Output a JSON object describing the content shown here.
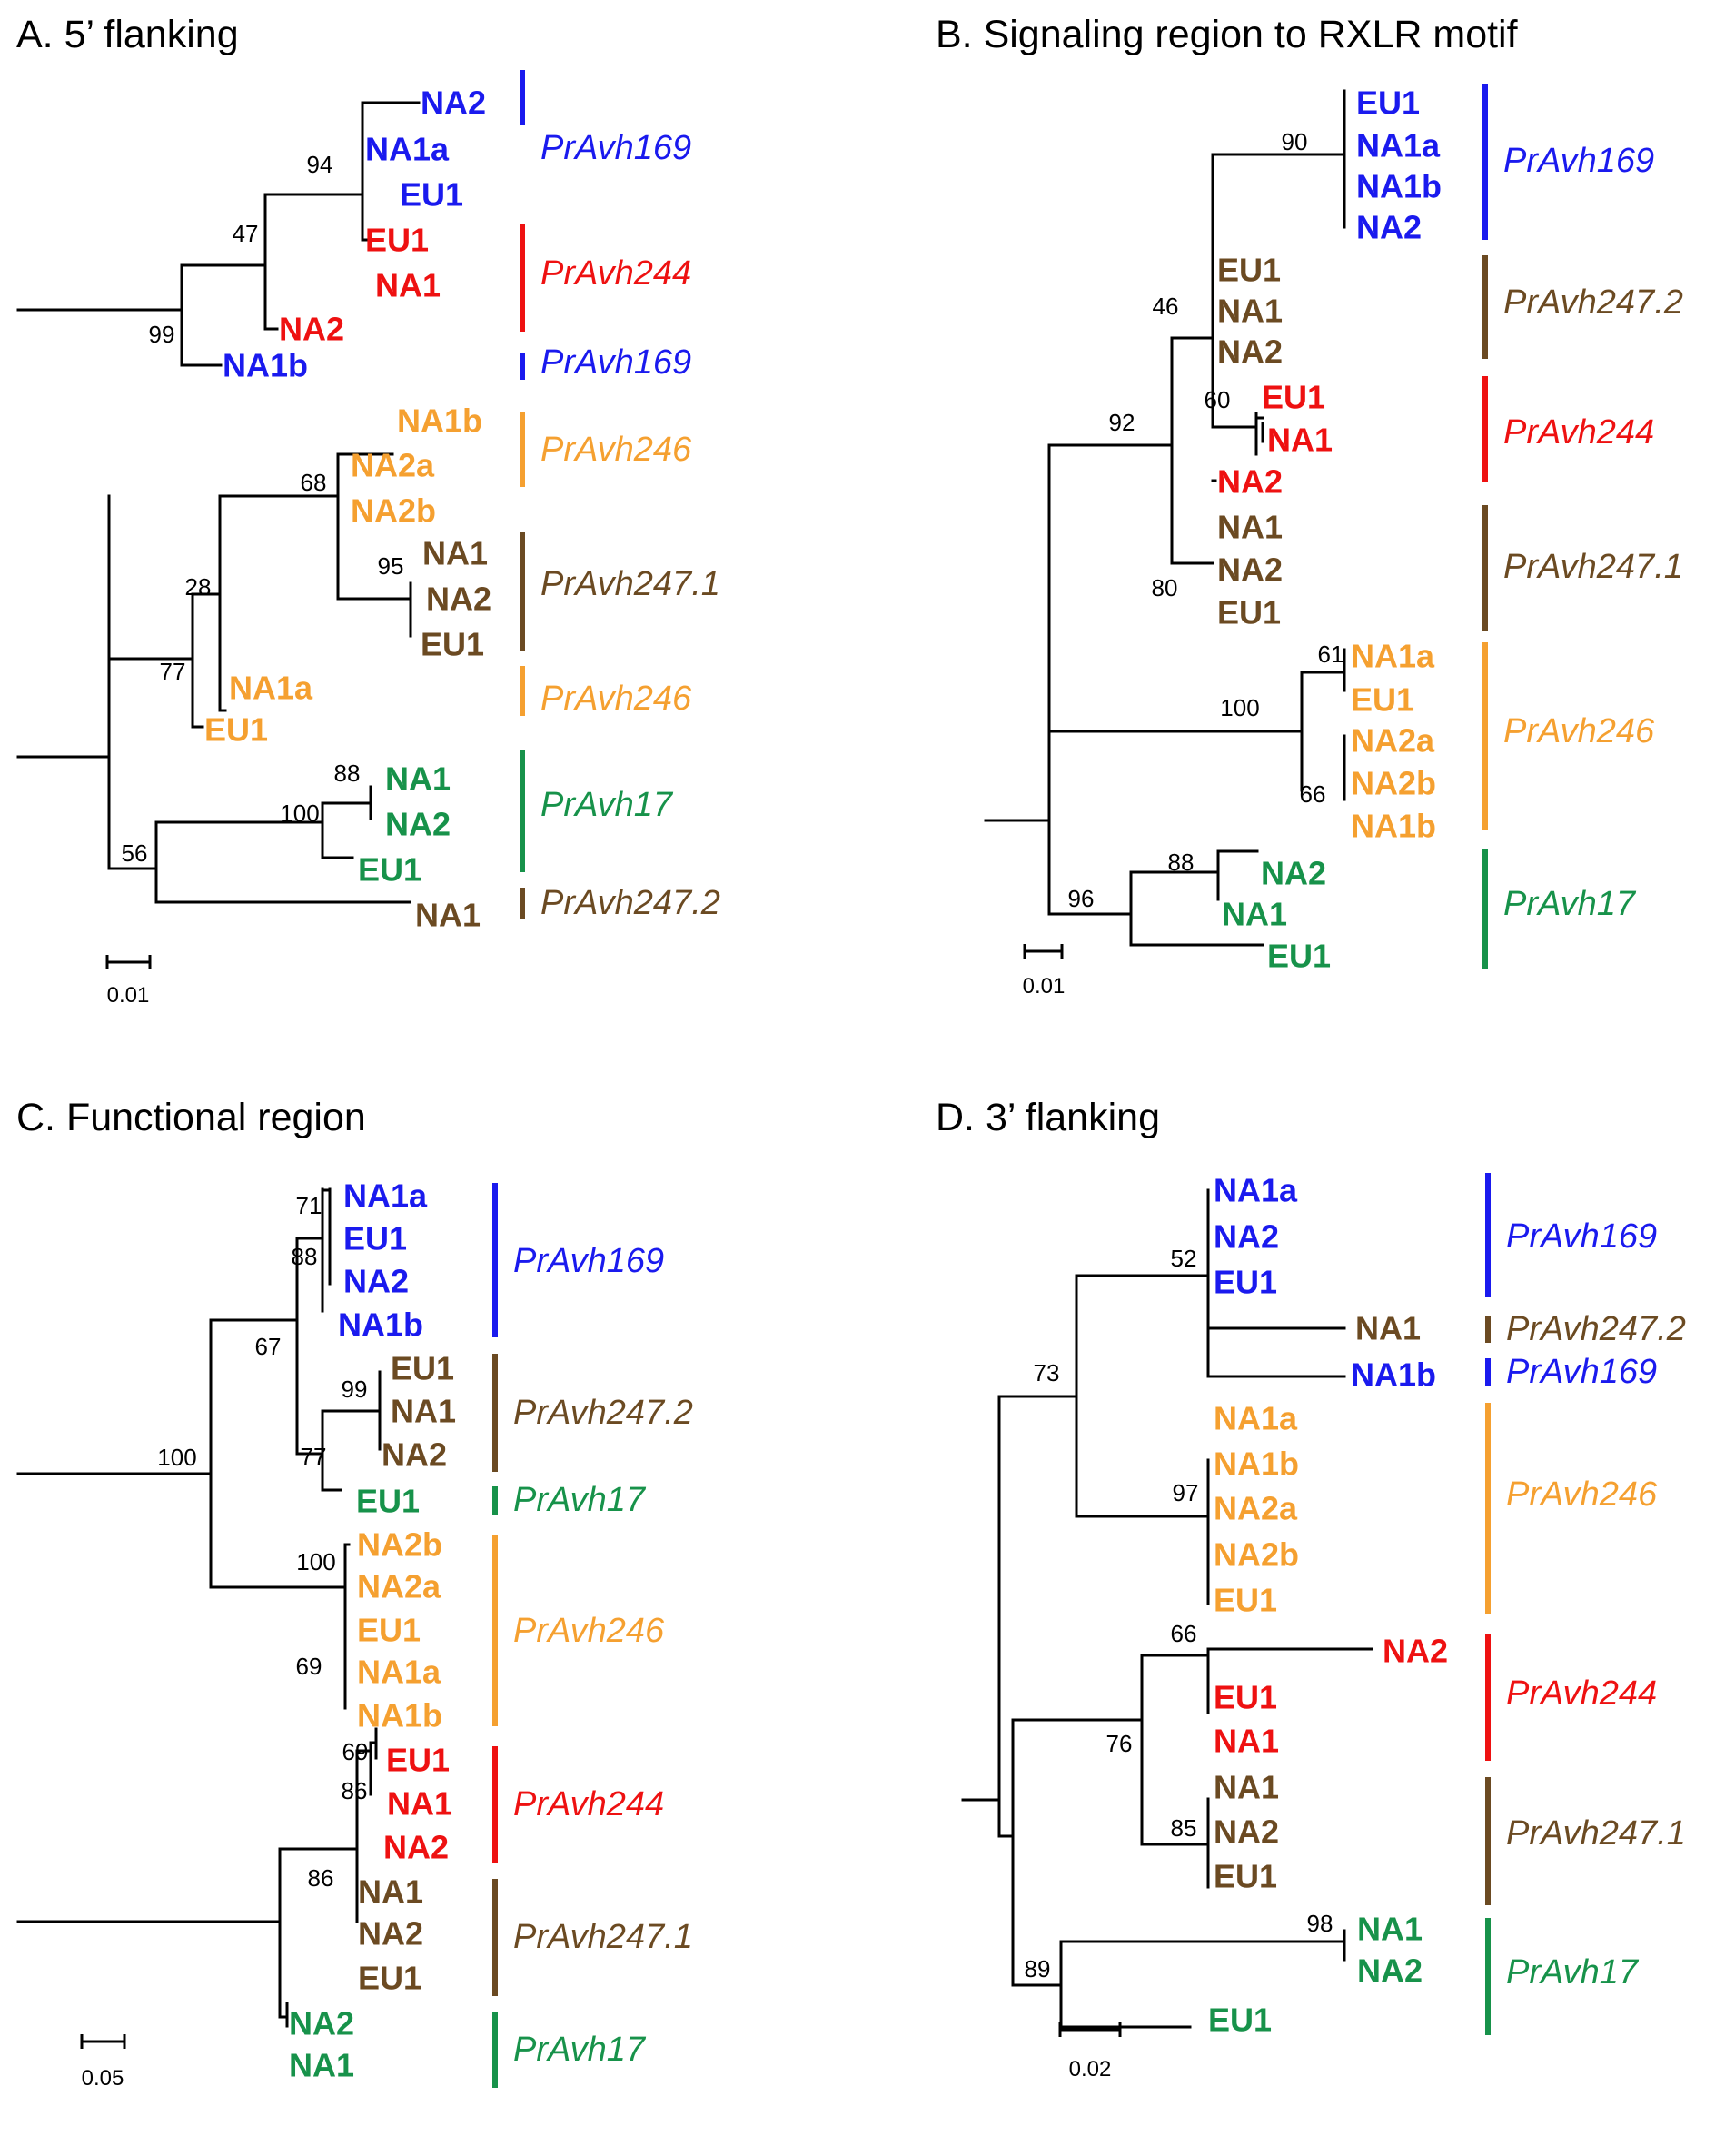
{
  "colors": {
    "blue": "#1a1aee",
    "red": "#ee1111",
    "orange": "#f5a030",
    "brown": "#6b4a22",
    "green": "#17924a"
  },
  "panels": [
    {
      "id": "A",
      "title": "A. 5’ flanking",
      "scale_label": "0.01",
      "leaves": [
        {
          "label": "NA2",
          "color": "blue"
        },
        {
          "label": "NA1a",
          "color": "blue"
        },
        {
          "label": "EU1",
          "color": "blue"
        },
        {
          "label": "EU1",
          "color": "red"
        },
        {
          "label": "NA1",
          "color": "red"
        },
        {
          "label": "NA2",
          "color": "red"
        },
        {
          "label": "NA1b",
          "color": "blue"
        },
        {
          "label": "NA1b",
          "color": "orange"
        },
        {
          "label": "NA2a",
          "color": "orange"
        },
        {
          "label": "NA2b",
          "color": "orange"
        },
        {
          "label": "NA1",
          "color": "brown"
        },
        {
          "label": "NA2",
          "color": "brown"
        },
        {
          "label": "EU1",
          "color": "brown"
        },
        {
          "label": "NA1a",
          "color": "orange"
        },
        {
          "label": "EU1",
          "color": "orange"
        },
        {
          "label": "NA1",
          "color": "green"
        },
        {
          "label": "NA2",
          "color": "green"
        },
        {
          "label": "EU1",
          "color": "green"
        },
        {
          "label": "NA1",
          "color": "brown"
        }
      ],
      "bootstrap": [
        "94",
        "47",
        "99",
        "68",
        "95",
        "28",
        "77",
        "88",
        "100",
        "56"
      ],
      "genes": [
        {
          "name": "PrAvh169",
          "color": "blue"
        },
        {
          "name": "PrAvh244",
          "color": "red"
        },
        {
          "name": "PrAvh169",
          "color": "blue"
        },
        {
          "name": "PrAvh246",
          "color": "orange"
        },
        {
          "name": "PrAvh247.1",
          "color": "brown"
        },
        {
          "name": "PrAvh246",
          "color": "orange"
        },
        {
          "name": "PrAvh17",
          "color": "green"
        },
        {
          "name": "PrAvh247.2",
          "color": "brown"
        }
      ]
    },
    {
      "id": "B",
      "title": "B. Signaling region to RXLR motif",
      "scale_label": "0.01",
      "leaves": [
        {
          "label": "EU1",
          "color": "blue"
        },
        {
          "label": "NA1a",
          "color": "blue"
        },
        {
          "label": "NA1b",
          "color": "blue"
        },
        {
          "label": "NA2",
          "color": "blue"
        },
        {
          "label": "EU1",
          "color": "brown"
        },
        {
          "label": "NA1",
          "color": "brown"
        },
        {
          "label": "NA2",
          "color": "brown"
        },
        {
          "label": "EU1",
          "color": "red"
        },
        {
          "label": "NA1",
          "color": "red"
        },
        {
          "label": "NA2",
          "color": "red"
        },
        {
          "label": "NA1",
          "color": "brown"
        },
        {
          "label": "NA2",
          "color": "brown"
        },
        {
          "label": "EU1",
          "color": "brown"
        },
        {
          "label": "NA1a",
          "color": "orange"
        },
        {
          "label": "EU1",
          "color": "orange"
        },
        {
          "label": "NA2a",
          "color": "orange"
        },
        {
          "label": "NA2b",
          "color": "orange"
        },
        {
          "label": "NA1b",
          "color": "orange"
        },
        {
          "label": "NA2",
          "color": "green"
        },
        {
          "label": "NA1",
          "color": "green"
        },
        {
          "label": "EU1",
          "color": "green"
        }
      ],
      "bootstrap": [
        "90",
        "46",
        "60",
        "92",
        "80",
        "61",
        "100",
        "66",
        "88",
        "96"
      ],
      "genes": [
        {
          "name": "PrAvh169",
          "color": "blue"
        },
        {
          "name": "PrAvh247.2",
          "color": "brown"
        },
        {
          "name": "PrAvh244",
          "color": "red"
        },
        {
          "name": "PrAvh247.1",
          "color": "brown"
        },
        {
          "name": "PrAvh246",
          "color": "orange"
        },
        {
          "name": "PrAvh17",
          "color": "green"
        }
      ]
    },
    {
      "id": "C",
      "title": "C. Functional region",
      "scale_label": "0.05",
      "leaves": [
        {
          "label": "NA1a",
          "color": "blue"
        },
        {
          "label": "EU1",
          "color": "blue"
        },
        {
          "label": "NA2",
          "color": "blue"
        },
        {
          "label": "NA1b",
          "color": "blue"
        },
        {
          "label": "EU1",
          "color": "brown"
        },
        {
          "label": "NA1",
          "color": "brown"
        },
        {
          "label": "NA2",
          "color": "brown"
        },
        {
          "label": "EU1",
          "color": "green"
        },
        {
          "label": "NA2b",
          "color": "orange"
        },
        {
          "label": "NA2a",
          "color": "orange"
        },
        {
          "label": "EU1",
          "color": "orange"
        },
        {
          "label": "NA1a",
          "color": "orange"
        },
        {
          "label": "NA1b",
          "color": "orange"
        },
        {
          "label": "EU1",
          "color": "red"
        },
        {
          "label": "NA1",
          "color": "red"
        },
        {
          "label": "NA2",
          "color": "red"
        },
        {
          "label": "NA1",
          "color": "brown"
        },
        {
          "label": "NA2",
          "color": "brown"
        },
        {
          "label": "EU1",
          "color": "brown"
        },
        {
          "label": "NA2",
          "color": "green"
        },
        {
          "label": "NA1",
          "color": "green"
        }
      ],
      "bootstrap": [
        "71",
        "88",
        "67",
        "99",
        "77",
        "100",
        "100",
        "69",
        "69",
        "86",
        "86"
      ],
      "genes": [
        {
          "name": "PrAvh169",
          "color": "blue"
        },
        {
          "name": "PrAvh247.2",
          "color": "brown"
        },
        {
          "name": "PrAvh17",
          "color": "green"
        },
        {
          "name": "PrAvh246",
          "color": "orange"
        },
        {
          "name": "PrAvh244",
          "color": "red"
        },
        {
          "name": "PrAvh247.1",
          "color": "brown"
        },
        {
          "name": "PrAvh17",
          "color": "green"
        }
      ]
    },
    {
      "id": "D",
      "title": "D. 3’ flanking",
      "scale_label": "0.02",
      "leaves": [
        {
          "label": "NA1a",
          "color": "blue"
        },
        {
          "label": "NA2",
          "color": "blue"
        },
        {
          "label": "EU1",
          "color": "blue"
        },
        {
          "label": "NA1",
          "color": "brown"
        },
        {
          "label": "NA1b",
          "color": "blue"
        },
        {
          "label": "NA1a",
          "color": "orange"
        },
        {
          "label": "NA1b",
          "color": "orange"
        },
        {
          "label": "NA2a",
          "color": "orange"
        },
        {
          "label": "NA2b",
          "color": "orange"
        },
        {
          "label": "EU1",
          "color": "orange"
        },
        {
          "label": "NA2",
          "color": "red"
        },
        {
          "label": "EU1",
          "color": "red"
        },
        {
          "label": "NA1",
          "color": "red"
        },
        {
          "label": "NA1",
          "color": "brown"
        },
        {
          "label": "NA2",
          "color": "brown"
        },
        {
          "label": "EU1",
          "color": "brown"
        },
        {
          "label": "NA1",
          "color": "green"
        },
        {
          "label": "NA2",
          "color": "green"
        },
        {
          "label": "EU1",
          "color": "green"
        }
      ],
      "bootstrap": [
        "52",
        "73",
        "97",
        "66",
        "76",
        "85",
        "98",
        "89"
      ],
      "genes": [
        {
          "name": "PrAvh169",
          "color": "blue"
        },
        {
          "name": "PrAvh247.2",
          "color": "brown"
        },
        {
          "name": "PrAvh169",
          "color": "blue"
        },
        {
          "name": "PrAvh246",
          "color": "orange"
        },
        {
          "name": "PrAvh244",
          "color": "red"
        },
        {
          "name": "PrAvh247.1",
          "color": "brown"
        },
        {
          "name": "PrAvh17",
          "color": "green"
        }
      ]
    }
  ]
}
